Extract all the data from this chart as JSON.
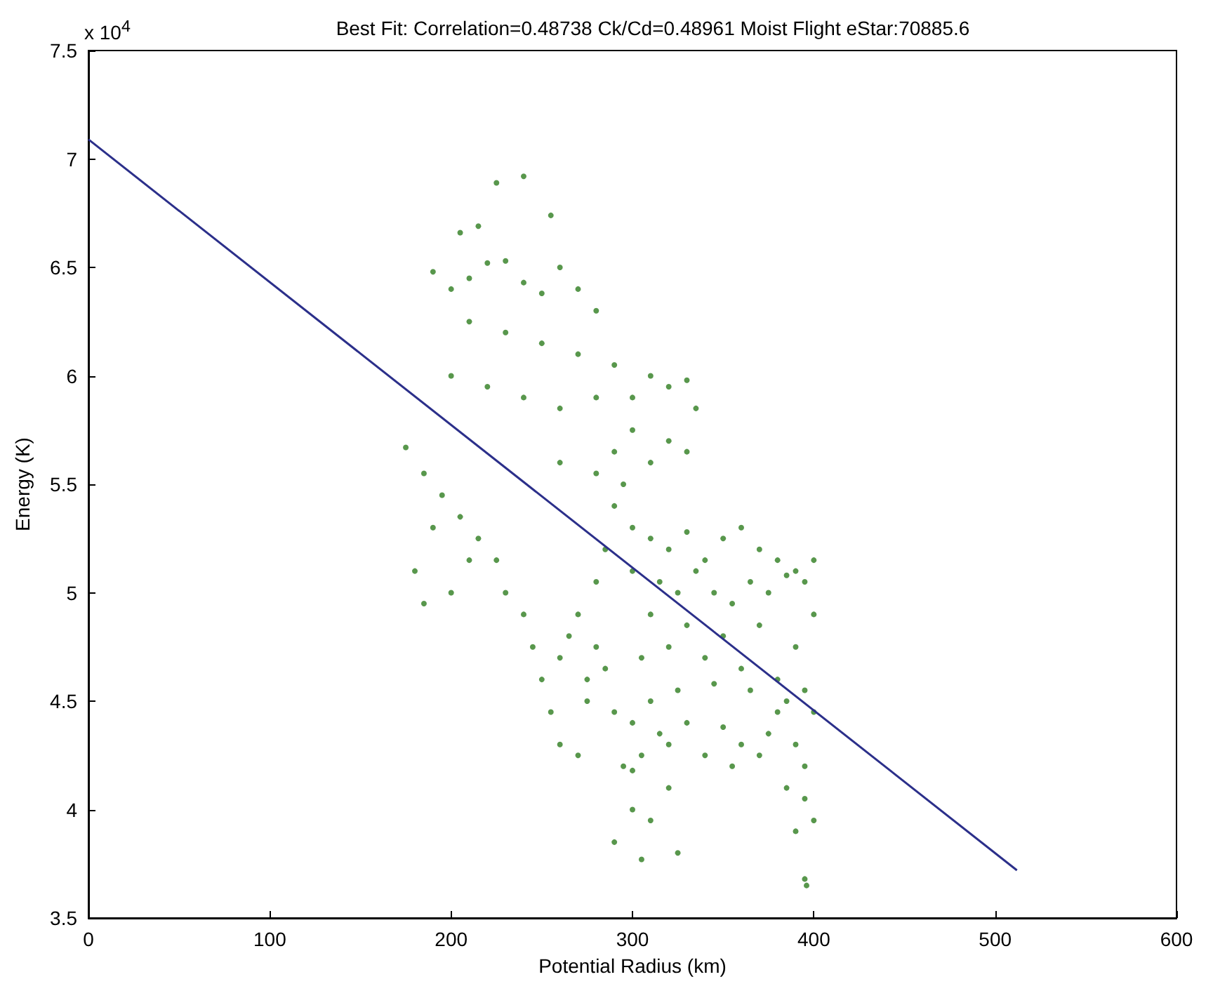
{
  "chart_data": {
    "type": "scatter",
    "title": "Best Fit: Correlation=0.48738 Ck/Cd=0.48961 Moist Flight eStar:70885.6",
    "xlabel": "Potential Radius (km)",
    "ylabel": "Energy (K)",
    "annotations": [
      "x 10$^{4}$"
    ],
    "xlim": [
      0,
      600
    ],
    "xticks": [
      0,
      100,
      200,
      300,
      400,
      500,
      600
    ],
    "ylim": [
      3.5,
      7.5
    ],
    "yticks": [
      3.5,
      4,
      4.5,
      5,
      5.5,
      6,
      6.5,
      7,
      7.5
    ],
    "grid": false,
    "marker": "circle",
    "series": [
      {
        "color": "#2e7d1f",
        "x": [
          225,
          240,
          255,
          205,
          215,
          190,
          200,
          210,
          220,
          230,
          240,
          250,
          260,
          270,
          280,
          210,
          230,
          250,
          270,
          290,
          200,
          220,
          240,
          260,
          280,
          300,
          310,
          320,
          330,
          335,
          300,
          290,
          280,
          310,
          320,
          330,
          260,
          175,
          185,
          195,
          205,
          215,
          225,
          190,
          180,
          185,
          200,
          210,
          230,
          240,
          245,
          250,
          255,
          260,
          270,
          275,
          280,
          285,
          290,
          295,
          300,
          290,
          305,
          310,
          320,
          325,
          300,
          290,
          300,
          310,
          320,
          330,
          340,
          350,
          360,
          370,
          380,
          390,
          400,
          300,
          315,
          325,
          335,
          345,
          355,
          365,
          375,
          385,
          395,
          310,
          330,
          350,
          370,
          390,
          400,
          305,
          320,
          340,
          360,
          380,
          395,
          310,
          325,
          345,
          365,
          385,
          400,
          300,
          315,
          330,
          350,
          360,
          375,
          390,
          305,
          340,
          355,
          370,
          395,
          320,
          380,
          385,
          395,
          400,
          390,
          395,
          396,
          285,
          295,
          260,
          270,
          280,
          275,
          265
        ],
        "values": [
          6.89,
          6.92,
          6.74,
          6.66,
          6.69,
          6.48,
          6.4,
          6.45,
          6.52,
          6.53,
          6.43,
          6.38,
          6.5,
          6.4,
          6.3,
          6.25,
          6.2,
          6.15,
          6.1,
          6.05,
          6,
          5.95,
          5.9,
          5.85,
          5.9,
          5.9,
          6,
          5.95,
          5.98,
          5.85,
          5.75,
          5.65,
          5.55,
          5.6,
          5.7,
          5.65,
          5.6,
          5.67,
          5.55,
          5.45,
          5.35,
          5.25,
          5.15,
          5.3,
          5.1,
          4.95,
          5,
          5.15,
          5,
          4.9,
          4.75,
          4.6,
          4.45,
          4.3,
          4.25,
          4.5,
          4.75,
          4.65,
          4.45,
          4.2,
          4,
          3.85,
          3.77,
          3.95,
          4.1,
          3.8,
          4.18,
          5.4,
          5.3,
          5.25,
          5.2,
          5.28,
          5.15,
          5.25,
          5.3,
          5.2,
          5.15,
          5.1,
          5.15,
          5.1,
          5.05,
          5,
          5.1,
          5,
          4.95,
          5.05,
          5,
          5.08,
          5.05,
          4.9,
          4.85,
          4.8,
          4.85,
          4.75,
          4.9,
          4.7,
          4.75,
          4.7,
          4.65,
          4.6,
          4.55,
          4.5,
          4.55,
          4.58,
          4.55,
          4.5,
          4.45,
          4.4,
          4.35,
          4.4,
          4.38,
          4.3,
          4.35,
          4.3,
          4.25,
          4.25,
          4.2,
          4.25,
          4.2,
          4.3,
          4.45,
          4.1,
          4.05,
          3.95,
          3.9,
          3.68,
          3.65,
          5.2,
          5.5,
          4.7,
          4.9,
          5.05,
          4.6,
          4.8
        ]
      },
      {
        "type": "line",
        "color": "#2b2f8a",
        "marker": "none",
        "x": [
          0,
          512
        ],
        "values": [
          7.09,
          3.72
        ]
      }
    ]
  }
}
